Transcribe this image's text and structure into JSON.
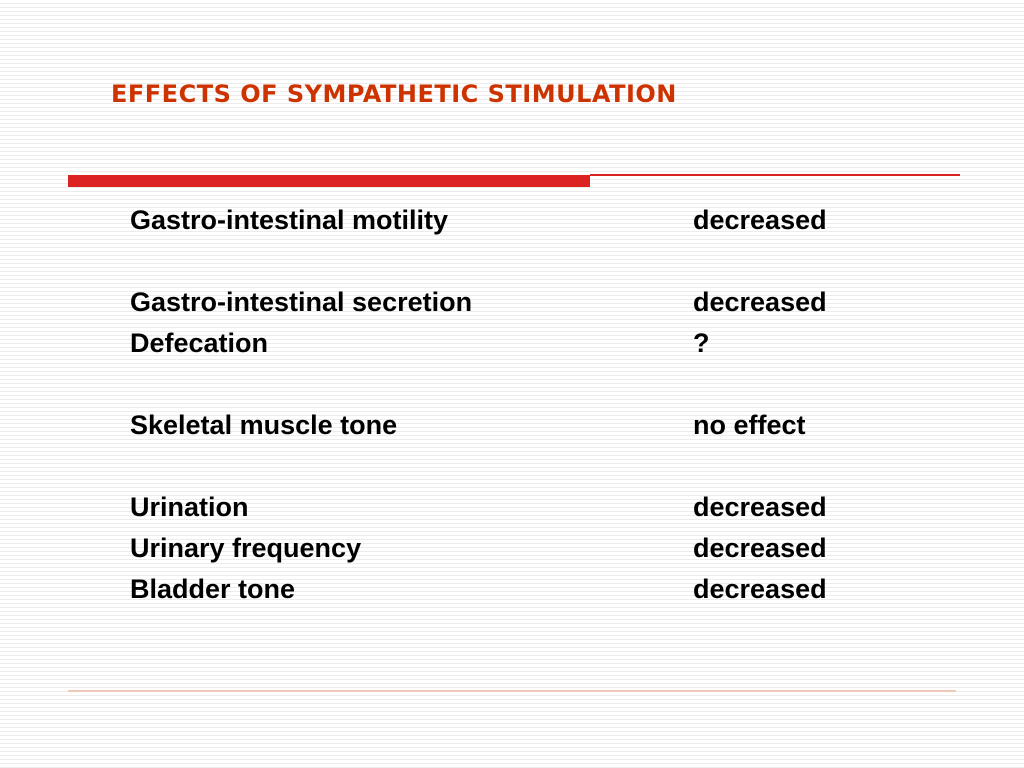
{
  "slide": {
    "title": "EFFECTS OF SYMPATHETIC STIMULATION",
    "title_color": "#cc3300",
    "rule_color": "#dd2222",
    "footer_rule_color": "#f0c8b8"
  },
  "effects": [
    {
      "name": "Gastro-intestinal motility",
      "value": "decreased"
    },
    {
      "name": "Gastro-intestinal secretion",
      "value": "decreased"
    },
    {
      "name": "Defecation",
      "value": "?"
    },
    {
      "name": "Skeletal muscle tone",
      "value": "no effect"
    },
    {
      "name": "Urination",
      "value": "decreased"
    },
    {
      "name": "Urinary frequency",
      "value": "decreased"
    },
    {
      "name": "Bladder tone",
      "value": "decreased"
    }
  ]
}
